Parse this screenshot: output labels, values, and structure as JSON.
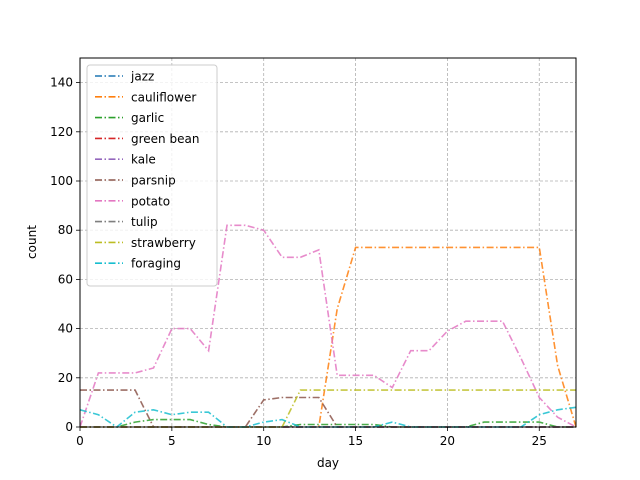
{
  "chart_data": {
    "type": "line",
    "title": "",
    "xlabel": "day",
    "ylabel": "count",
    "xlim": [
      0,
      27
    ],
    "ylim": [
      0,
      150
    ],
    "xticks": [
      0,
      5,
      10,
      15,
      20,
      25
    ],
    "yticks": [
      0,
      20,
      40,
      60,
      80,
      100,
      120,
      140
    ],
    "grid": true,
    "legend_position": "top-left",
    "x": [
      0,
      1,
      2,
      3,
      4,
      5,
      6,
      7,
      8,
      9,
      10,
      11,
      12,
      13,
      14,
      15,
      16,
      17,
      18,
      19,
      20,
      21,
      22,
      23,
      24,
      25,
      26,
      27
    ],
    "series": [
      {
        "name": "jazz",
        "color": "#1f77b4",
        "values": [
          0,
          0,
          0,
          0,
          0,
          0,
          0,
          0,
          0,
          0,
          0,
          0,
          0,
          0,
          0,
          0,
          0,
          0,
          0,
          0,
          0,
          0,
          0,
          0,
          0,
          0,
          0,
          0
        ]
      },
      {
        "name": "cauliflower",
        "color": "#ff7f0e",
        "values": [
          0,
          0,
          0,
          0,
          0,
          0,
          0,
          0,
          0,
          0,
          0,
          0,
          0,
          0,
          48,
          73,
          73,
          73,
          73,
          73,
          73,
          73,
          73,
          73,
          73,
          73,
          25,
          0
        ]
      },
      {
        "name": "garlic",
        "color": "#2ca02c",
        "values": [
          0,
          0,
          0,
          2,
          3,
          3,
          3,
          1,
          0,
          0,
          0,
          0,
          1,
          1,
          1,
          1,
          1,
          0,
          0,
          0,
          0,
          0,
          2,
          2,
          2,
          2,
          0,
          0
        ]
      },
      {
        "name": "green bean",
        "color": "#d62728",
        "values": [
          0,
          0,
          0,
          0,
          0,
          0,
          0,
          0,
          0,
          0,
          0,
          0,
          0,
          0,
          0,
          0,
          0,
          0,
          0,
          0,
          0,
          0,
          0,
          0,
          0,
          0,
          0,
          0
        ]
      },
      {
        "name": "kale",
        "color": "#9467bd",
        "values": [
          0,
          0,
          0,
          0,
          0,
          0,
          0,
          0,
          0,
          0,
          0,
          0,
          0,
          0,
          0,
          0,
          0,
          0,
          0,
          0,
          0,
          0,
          0,
          0,
          0,
          0,
          0,
          0
        ]
      },
      {
        "name": "parsnip",
        "color": "#8c564b",
        "values": [
          15,
          15,
          15,
          15,
          0,
          0,
          0,
          0,
          0,
          0,
          11,
          12,
          12,
          12,
          0,
          0,
          0,
          0,
          0,
          0,
          0,
          0,
          0,
          0,
          0,
          0,
          0,
          0
        ]
      },
      {
        "name": "potato",
        "color": "#e377c2",
        "values": [
          0,
          22,
          22,
          22,
          24,
          40,
          40,
          31,
          82,
          82,
          80,
          69,
          69,
          72,
          21,
          21,
          21,
          16,
          31,
          31,
          39,
          43,
          43,
          43,
          28,
          12,
          4,
          0
        ]
      },
      {
        "name": "tulip",
        "color": "#7f7f7f",
        "values": [
          0,
          0,
          0,
          0,
          0,
          0,
          0,
          0,
          0,
          0,
          0,
          0,
          0,
          0,
          0,
          0,
          0,
          0,
          0,
          0,
          0,
          0,
          0,
          0,
          0,
          0,
          0,
          0
        ]
      },
      {
        "name": "strawberry",
        "color": "#bcbd22",
        "values": [
          0,
          0,
          0,
          0,
          0,
          0,
          0,
          0,
          0,
          0,
          0,
          0,
          15,
          15,
          15,
          15,
          15,
          15,
          15,
          15,
          15,
          15,
          15,
          15,
          15,
          15,
          15,
          15
        ]
      },
      {
        "name": "foraging",
        "color": "#17becf",
        "values": [
          7,
          5,
          0,
          6,
          7,
          5,
          6,
          6,
          0,
          0,
          2,
          3,
          0,
          0,
          0,
          0,
          0,
          2,
          0,
          0,
          0,
          0,
          0,
          0,
          0,
          5,
          7,
          8
        ]
      }
    ]
  }
}
